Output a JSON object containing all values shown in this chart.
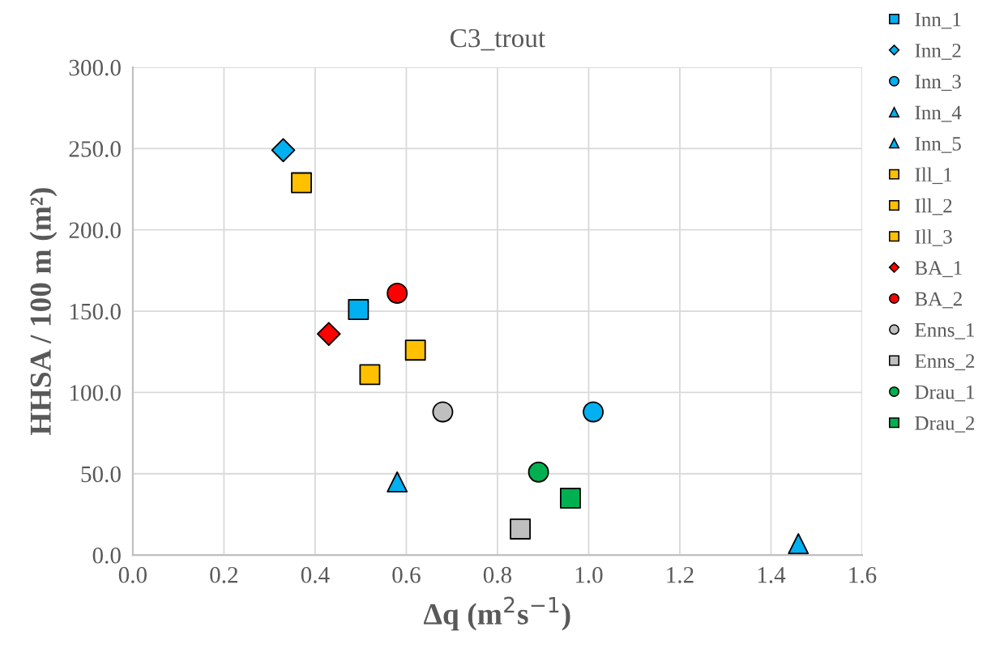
{
  "chart_data": {
    "type": "scatter",
    "title": "C3_trout",
    "xlabel": "Δq (m$^{2}$s$^{−1}$)",
    "ylabel": "HHSA / 100 m (m²)",
    "xlim": [
      0.0,
      1.6
    ],
    "xticks": [
      {
        "value": 0,
        "label": "0.0"
      },
      0.2,
      0.4,
      0.6,
      0.8,
      {
        "value": 1,
        "label": "1.0"
      },
      1.2,
      1.4,
      1.6
    ],
    "ylim": [
      0.0,
      300.0
    ],
    "yticks": [
      {
        "value": 0,
        "label": "0.0"
      },
      {
        "value": 50,
        "label": "50.0"
      },
      {
        "value": 100,
        "label": "100.0"
      },
      {
        "value": 150,
        "label": "150.0"
      },
      {
        "value": 200,
        "label": "200.0"
      },
      {
        "value": 250,
        "label": "250.0"
      },
      {
        "value": 300,
        "label": "300.0"
      }
    ],
    "grid": true,
    "legend": "right",
    "series": [
      {
        "name": "Inn_1",
        "color": "#00b0f0",
        "marker": "square",
        "x": [
          0.495
        ],
        "values": [
          151
        ]
      },
      {
        "name": "Inn_2",
        "color": "#00b0f0",
        "marker": "diamond",
        "x": [
          0.33
        ],
        "values": [
          249
        ]
      },
      {
        "name": "Inn_3",
        "color": "#00b0f0",
        "marker": "circle",
        "x": [
          1.01
        ],
        "values": [
          88
        ]
      },
      {
        "name": "Inn_4",
        "color": "#00b0f0",
        "marker": "triangle",
        "x": [
          0.58
        ],
        "values": [
          45
        ]
      },
      {
        "name": "Inn_5",
        "color": "#00b0f0",
        "marker": "triangle",
        "x": [
          1.46
        ],
        "values": [
          7
        ]
      },
      {
        "name": "Ill_1",
        "color": "#ffc000",
        "marker": "square",
        "x": [
          0.37
        ],
        "values": [
          229
        ]
      },
      {
        "name": "Ill_2",
        "color": "#ffc000",
        "marker": "square",
        "x": [
          0.52
        ],
        "values": [
          111
        ]
      },
      {
        "name": "Ill_3",
        "color": "#ffc000",
        "marker": "square",
        "x": [
          0.62
        ],
        "values": [
          126
        ]
      },
      {
        "name": "BA_1",
        "color": "#ff0000",
        "marker": "diamond",
        "x": [
          0.43
        ],
        "values": [
          136
        ]
      },
      {
        "name": "BA_2",
        "color": "#ff0000",
        "marker": "circle",
        "x": [
          0.58
        ],
        "values": [
          161
        ]
      },
      {
        "name": "Enns_1",
        "color": "#bfbfbf",
        "marker": "circle",
        "x": [
          0.68
        ],
        "values": [
          88
        ]
      },
      {
        "name": "Enns_2",
        "color": "#bfbfbf",
        "marker": "square",
        "x": [
          0.85
        ],
        "values": [
          16
        ]
      },
      {
        "name": "Drau_1",
        "color": "#00b050",
        "marker": "circle",
        "x": [
          0.89
        ],
        "values": [
          51
        ]
      },
      {
        "name": "Drau_2",
        "color": "#00b050",
        "marker": "square",
        "x": [
          0.96
        ],
        "values": [
          35
        ]
      }
    ]
  }
}
